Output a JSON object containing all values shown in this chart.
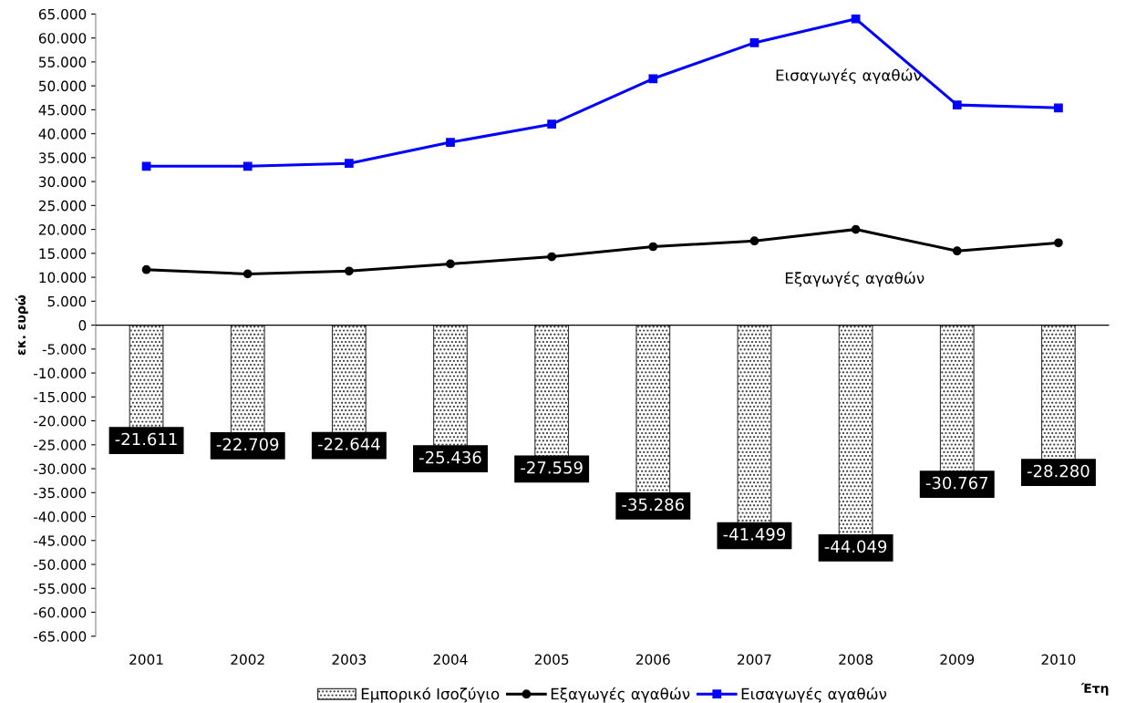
{
  "chart_data": {
    "type": "bar",
    "xlabel": "Έτη",
    "ylabel": "εκ. ευρώ",
    "categories": [
      "2001",
      "2002",
      "2003",
      "2004",
      "2005",
      "2006",
      "2007",
      "2008",
      "2009",
      "2010"
    ],
    "series": [
      {
        "name": "Εμπορικό Ισοζύγιο",
        "color": "#333333",
        "values": [
          -21611,
          -22709,
          -22644,
          -25436,
          -27559,
          -35286,
          -41499,
          -44049,
          -30767,
          -28280
        ],
        "value_labels": [
          "-21.611",
          "-22.709",
          "-22.644",
          "-25.436",
          "-27.559",
          "-35.286",
          "-41.499",
          "-44.049",
          "-30.767",
          "-28.280"
        ]
      },
      {
        "name": "Εξαγωγές αγαθών",
        "type": "line",
        "color": "#000000",
        "marker": "circle",
        "values": [
          11600,
          10700,
          11300,
          12800,
          14300,
          16400,
          17600,
          20000,
          15500,
          17200
        ]
      },
      {
        "name": "Εισαγωγές αγαθών",
        "type": "line",
        "color": "#0000ff",
        "marker": "square",
        "values": [
          33200,
          33200,
          33800,
          38200,
          42000,
          51500,
          59000,
          64000,
          46000,
          45400
        ]
      }
    ],
    "ylim": [
      -65000,
      65000
    ],
    "yticks": [
      {
        "value": -65000,
        "label": "-65.000"
      },
      {
        "value": -60000,
        "label": "-60.000"
      },
      {
        "value": -55000,
        "label": "-55.000"
      },
      {
        "value": -50000,
        "label": "-50.000"
      },
      {
        "value": -45000,
        "label": "-45.000"
      },
      {
        "value": -40000,
        "label": "-40.000"
      },
      {
        "value": -35000,
        "label": "-35.000"
      },
      {
        "value": -30000,
        "label": "-30.000"
      },
      {
        "value": -25000,
        "label": "-25.000"
      },
      {
        "value": -20000,
        "label": "-20.000"
      },
      {
        "value": -15000,
        "label": "-15.000"
      },
      {
        "value": -10000,
        "label": "-10.000"
      },
      {
        "value": -5000,
        "label": "-5.000"
      },
      {
        "value": 0,
        "label": "0"
      },
      {
        "value": 5000,
        "label": "5.000"
      },
      {
        "value": 10000,
        "label": "10.000"
      },
      {
        "value": 15000,
        "label": "15.000"
      },
      {
        "value": 20000,
        "label": "20.000"
      },
      {
        "value": 25000,
        "label": "25.000"
      },
      {
        "value": 30000,
        "label": "30.000"
      },
      {
        "value": 35000,
        "label": "35.000"
      },
      {
        "value": 40000,
        "label": "40.000"
      },
      {
        "value": 45000,
        "label": "45.000"
      },
      {
        "value": 50000,
        "label": "50.000"
      },
      {
        "value": 55000,
        "label": "55.000"
      },
      {
        "value": 60000,
        "label": "60.000"
      },
      {
        "value": 65000,
        "label": "65.000"
      }
    ],
    "annotations": [
      "Εισαγωγές αγαθών",
      "Εξαγωγές αγαθών"
    ],
    "legend": "bottom",
    "line_style": "solid"
  }
}
